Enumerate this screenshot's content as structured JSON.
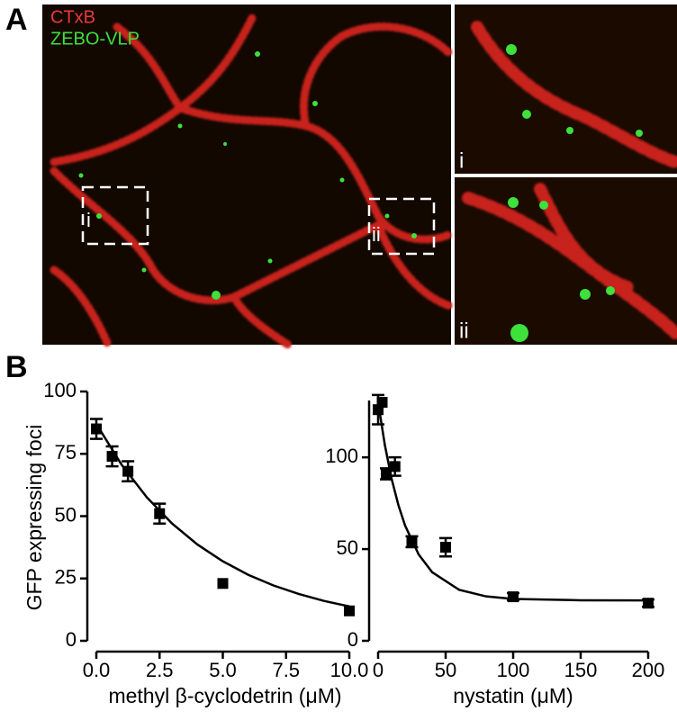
{
  "figure": {
    "panel_a_label": "A",
    "panel_b_label": "B",
    "legend": [
      {
        "name": "CTxB",
        "color": "#e8393a"
      },
      {
        "name": "ZEBO-VLP",
        "color": "#3ee03a"
      }
    ],
    "inset_labels": [
      "i",
      "ii"
    ]
  },
  "chart_data": [
    {
      "type": "scatter",
      "ylabel": "GFP expressing foci",
      "xlabel": "methyl β-cyclodetrin (μM)",
      "x": [
        0,
        0.625,
        1.25,
        2.5,
        5,
        10
      ],
      "values": [
        85,
        74,
        68,
        51,
        23,
        12
      ],
      "errors": [
        4,
        4,
        4,
        4,
        null,
        null
      ],
      "fit": {
        "x": [
          0,
          1,
          2,
          3,
          4,
          5,
          6,
          7,
          8,
          9,
          10
        ],
        "values": [
          87,
          70.6,
          57.5,
          47,
          38.6,
          31.9,
          26.5,
          22.2,
          18.8,
          16,
          13.8
        ]
      },
      "xlim": [
        0,
        10
      ],
      "xticks": [
        {
          "value": 0,
          "label": "0.0"
        },
        2.5,
        {
          "value": 5,
          "label": "5.0"
        },
        7.5,
        {
          "value": 10,
          "label": "10.0"
        }
      ],
      "ylim": [
        0,
        100
      ],
      "yticks": [
        0,
        25,
        50,
        75,
        100
      ],
      "color": "#000000"
    },
    {
      "type": "scatter",
      "xlabel": "nystatin (μM)",
      "x": [
        0,
        3,
        6,
        12.5,
        25,
        50,
        100,
        200
      ],
      "values": [
        126,
        130,
        91,
        95,
        54,
        51,
        24,
        20.5
      ],
      "errors": [
        8,
        null,
        3,
        5,
        3,
        5,
        2,
        2
      ],
      "fit": {
        "x": [
          0,
          5,
          10,
          15,
          20,
          30,
          40,
          60,
          80,
          100,
          150,
          200
        ],
        "values": [
          130,
          106.7,
          88.3,
          74,
          62.8,
          47.1,
          37.4,
          27.8,
          24.2,
          22.8,
          22.1,
          22
        ]
      },
      "xlim": [
        0,
        200
      ],
      "xticks": [
        0,
        50,
        100,
        150,
        200
      ],
      "ylim": [
        0,
        131
      ],
      "yticks": [
        0,
        50,
        100
      ],
      "color": "#000000"
    }
  ]
}
